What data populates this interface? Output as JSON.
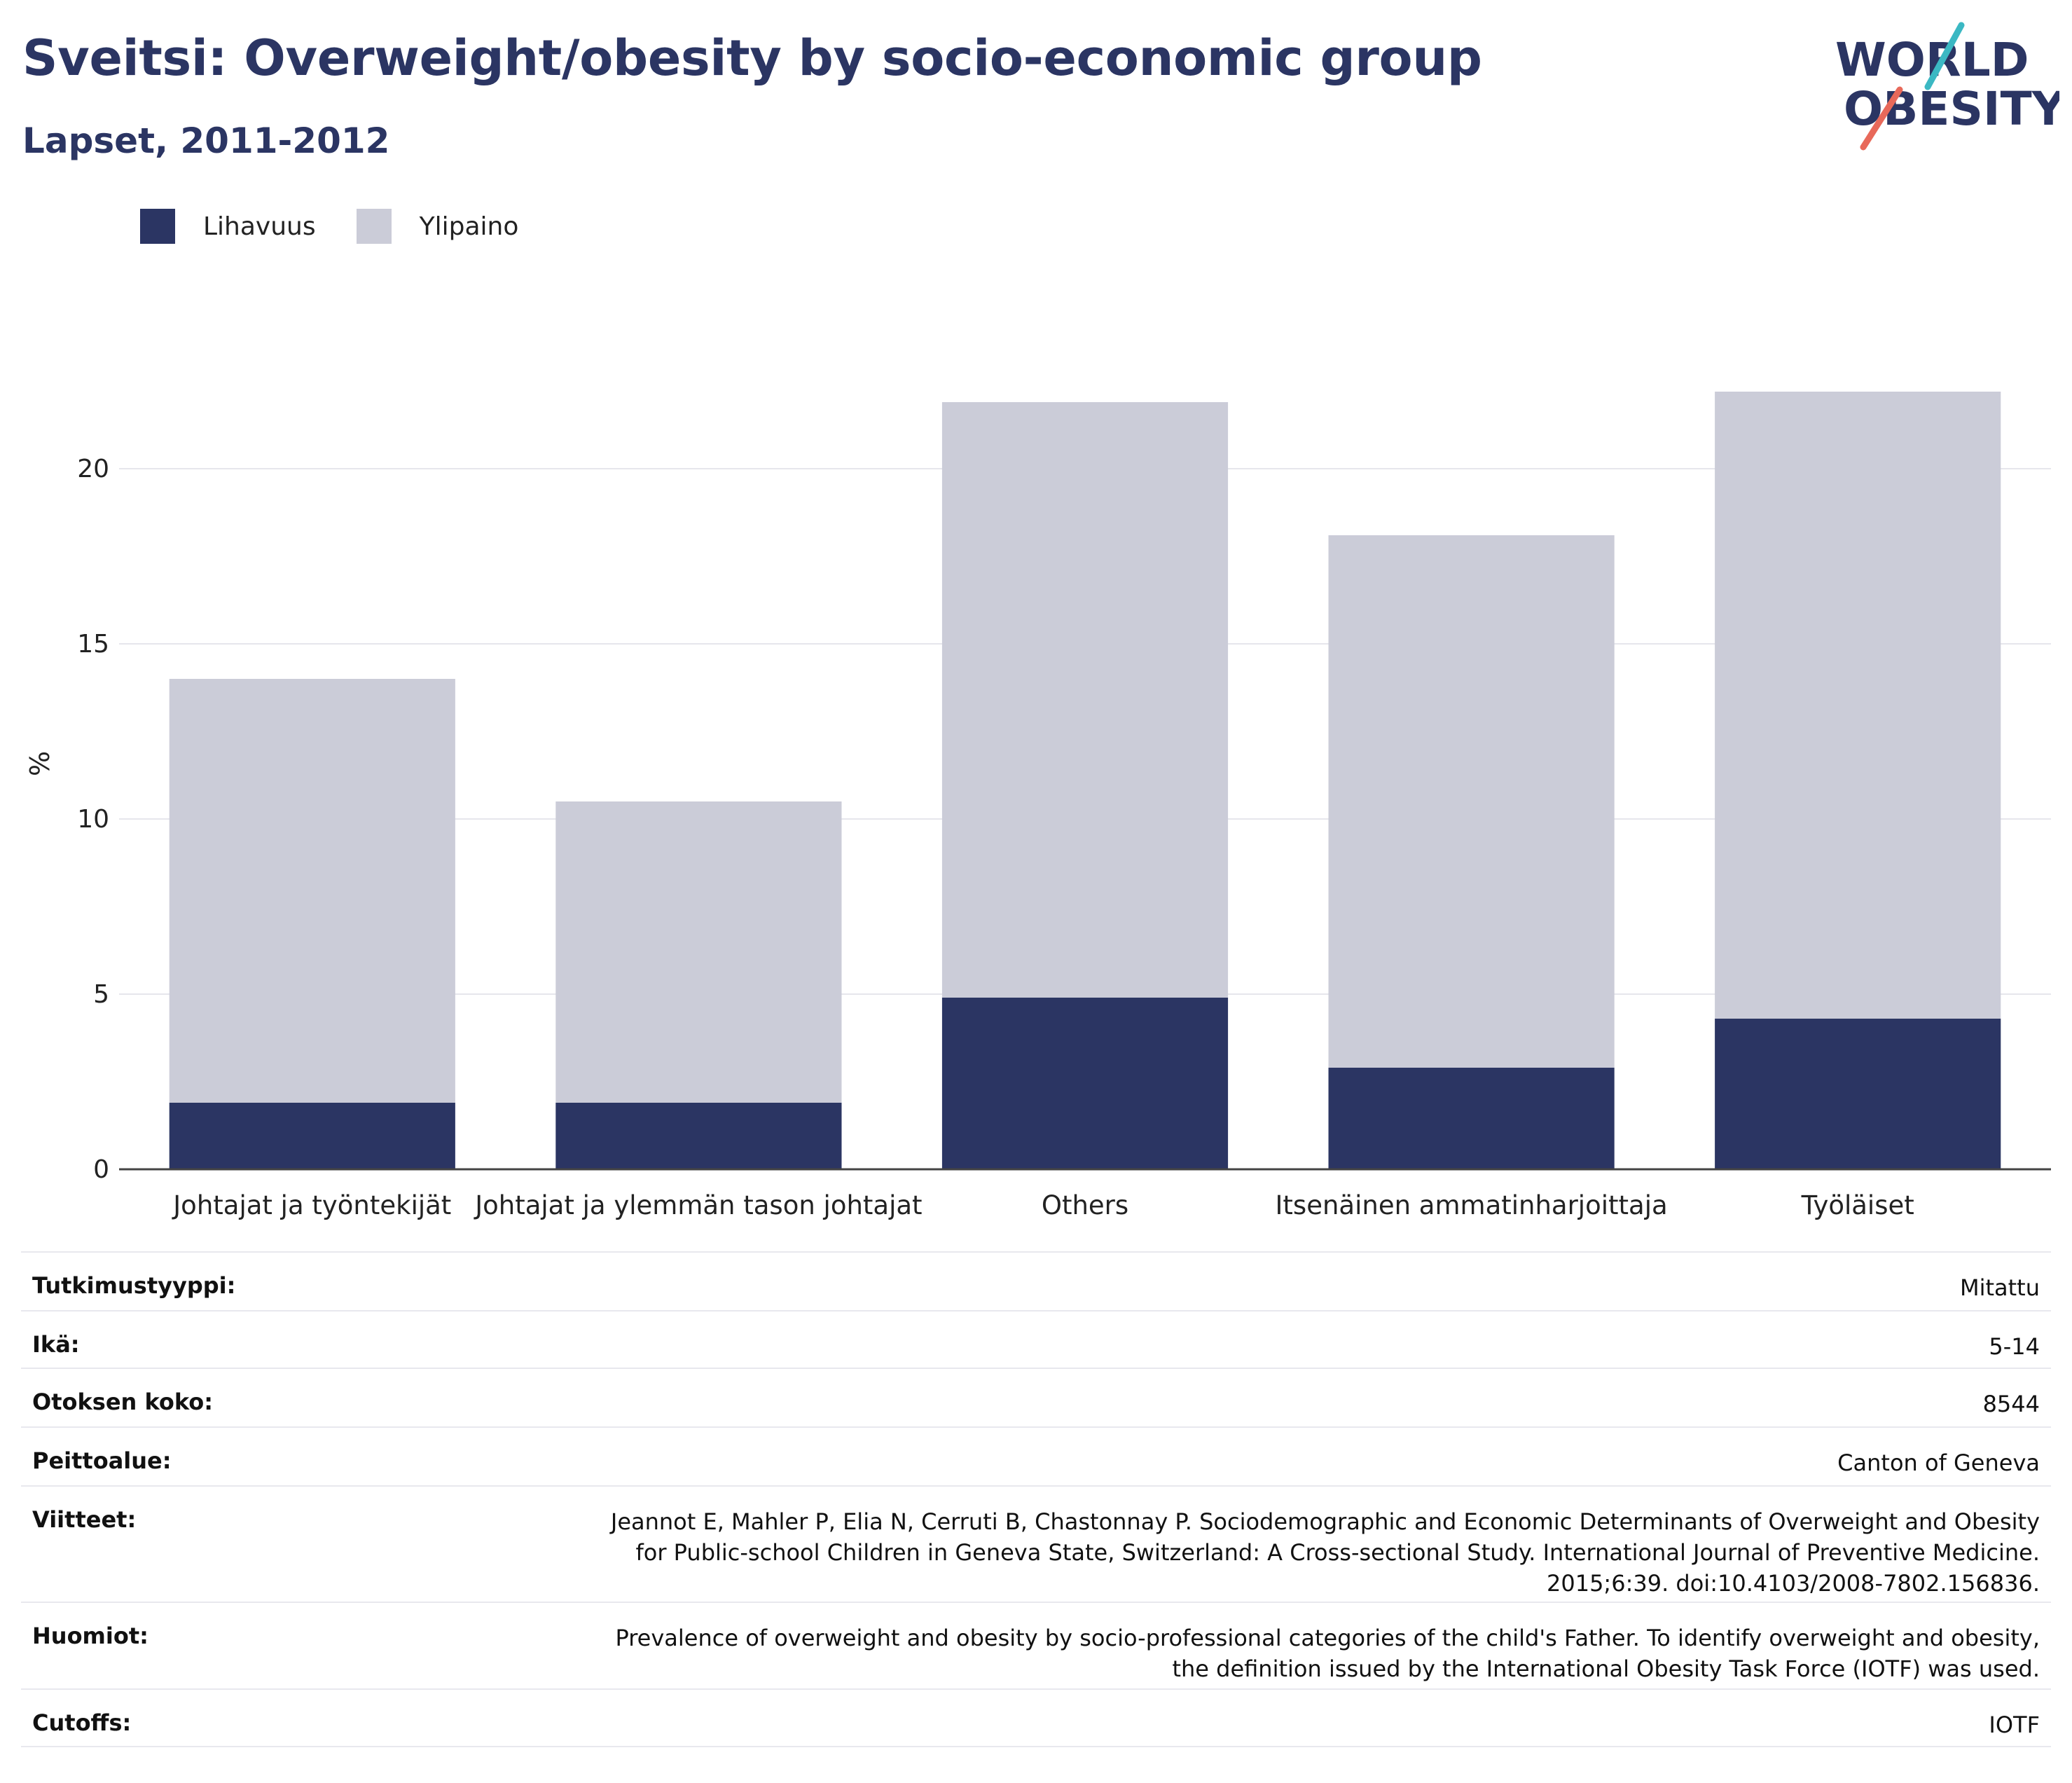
{
  "header": {
    "title": "Sveitsi: Overweight/obesity by socio-economic group",
    "subtitle": "Lapset, 2011-2012"
  },
  "logo": {
    "line1": "WORLD",
    "line2": "OBESITY"
  },
  "colors": {
    "obesity": "#2b3563",
    "overweight": "#cbccd8",
    "title": "#2b3563",
    "logo_teal": "#3bb8c3",
    "logo_coral": "#e8695a"
  },
  "chart_data": {
    "type": "bar",
    "stacked": true,
    "categories": [
      "Johtajat ja työntekijät",
      "Johtajat ja ylemmän tason johtajat",
      "Others",
      "Itsenäinen ammatinharjoittaja",
      "Työläiset"
    ],
    "series": [
      {
        "name": "Lihavuus",
        "values": [
          1.9,
          1.9,
          4.9,
          2.9,
          4.3
        ]
      },
      {
        "name": "Ylipaino",
        "values": [
          12.1,
          8.6,
          17.0,
          15.2,
          17.9
        ]
      }
    ],
    "ylabel": "%",
    "xlabel": "",
    "ylim": [
      0,
      25
    ],
    "yticks": [
      0,
      5,
      10,
      15,
      20
    ],
    "grid": true,
    "legend_position": "top-left"
  },
  "meta": [
    {
      "label": "Tutkimustyyppi:",
      "value": "Mitattu"
    },
    {
      "label": "Ikä:",
      "value": "5-14"
    },
    {
      "label": "Otoksen koko:",
      "value": "8544"
    },
    {
      "label": "Peittoalue:",
      "value": "Canton of Geneva"
    },
    {
      "label": "Viitteet:",
      "value": "Jeannot E, Mahler P, Elia N, Cerruti B, Chastonnay P. Sociodemographic and Economic Determinants of Overweight and Obesity for Public-school Children in Geneva State, Switzerland: A Cross-sectional Study. International Journal of Preventive Medicine. 2015;6:39. doi:10.4103/2008-7802.156836."
    },
    {
      "label": "Huomiot:",
      "value": "Prevalence of overweight and obesity by socio-professional categories of the child's Father. To identify overweight and obesity, the definition issued by the International Obesity Task Force (IOTF) was used."
    },
    {
      "label": "Cutoffs:",
      "value": "IOTF"
    }
  ]
}
